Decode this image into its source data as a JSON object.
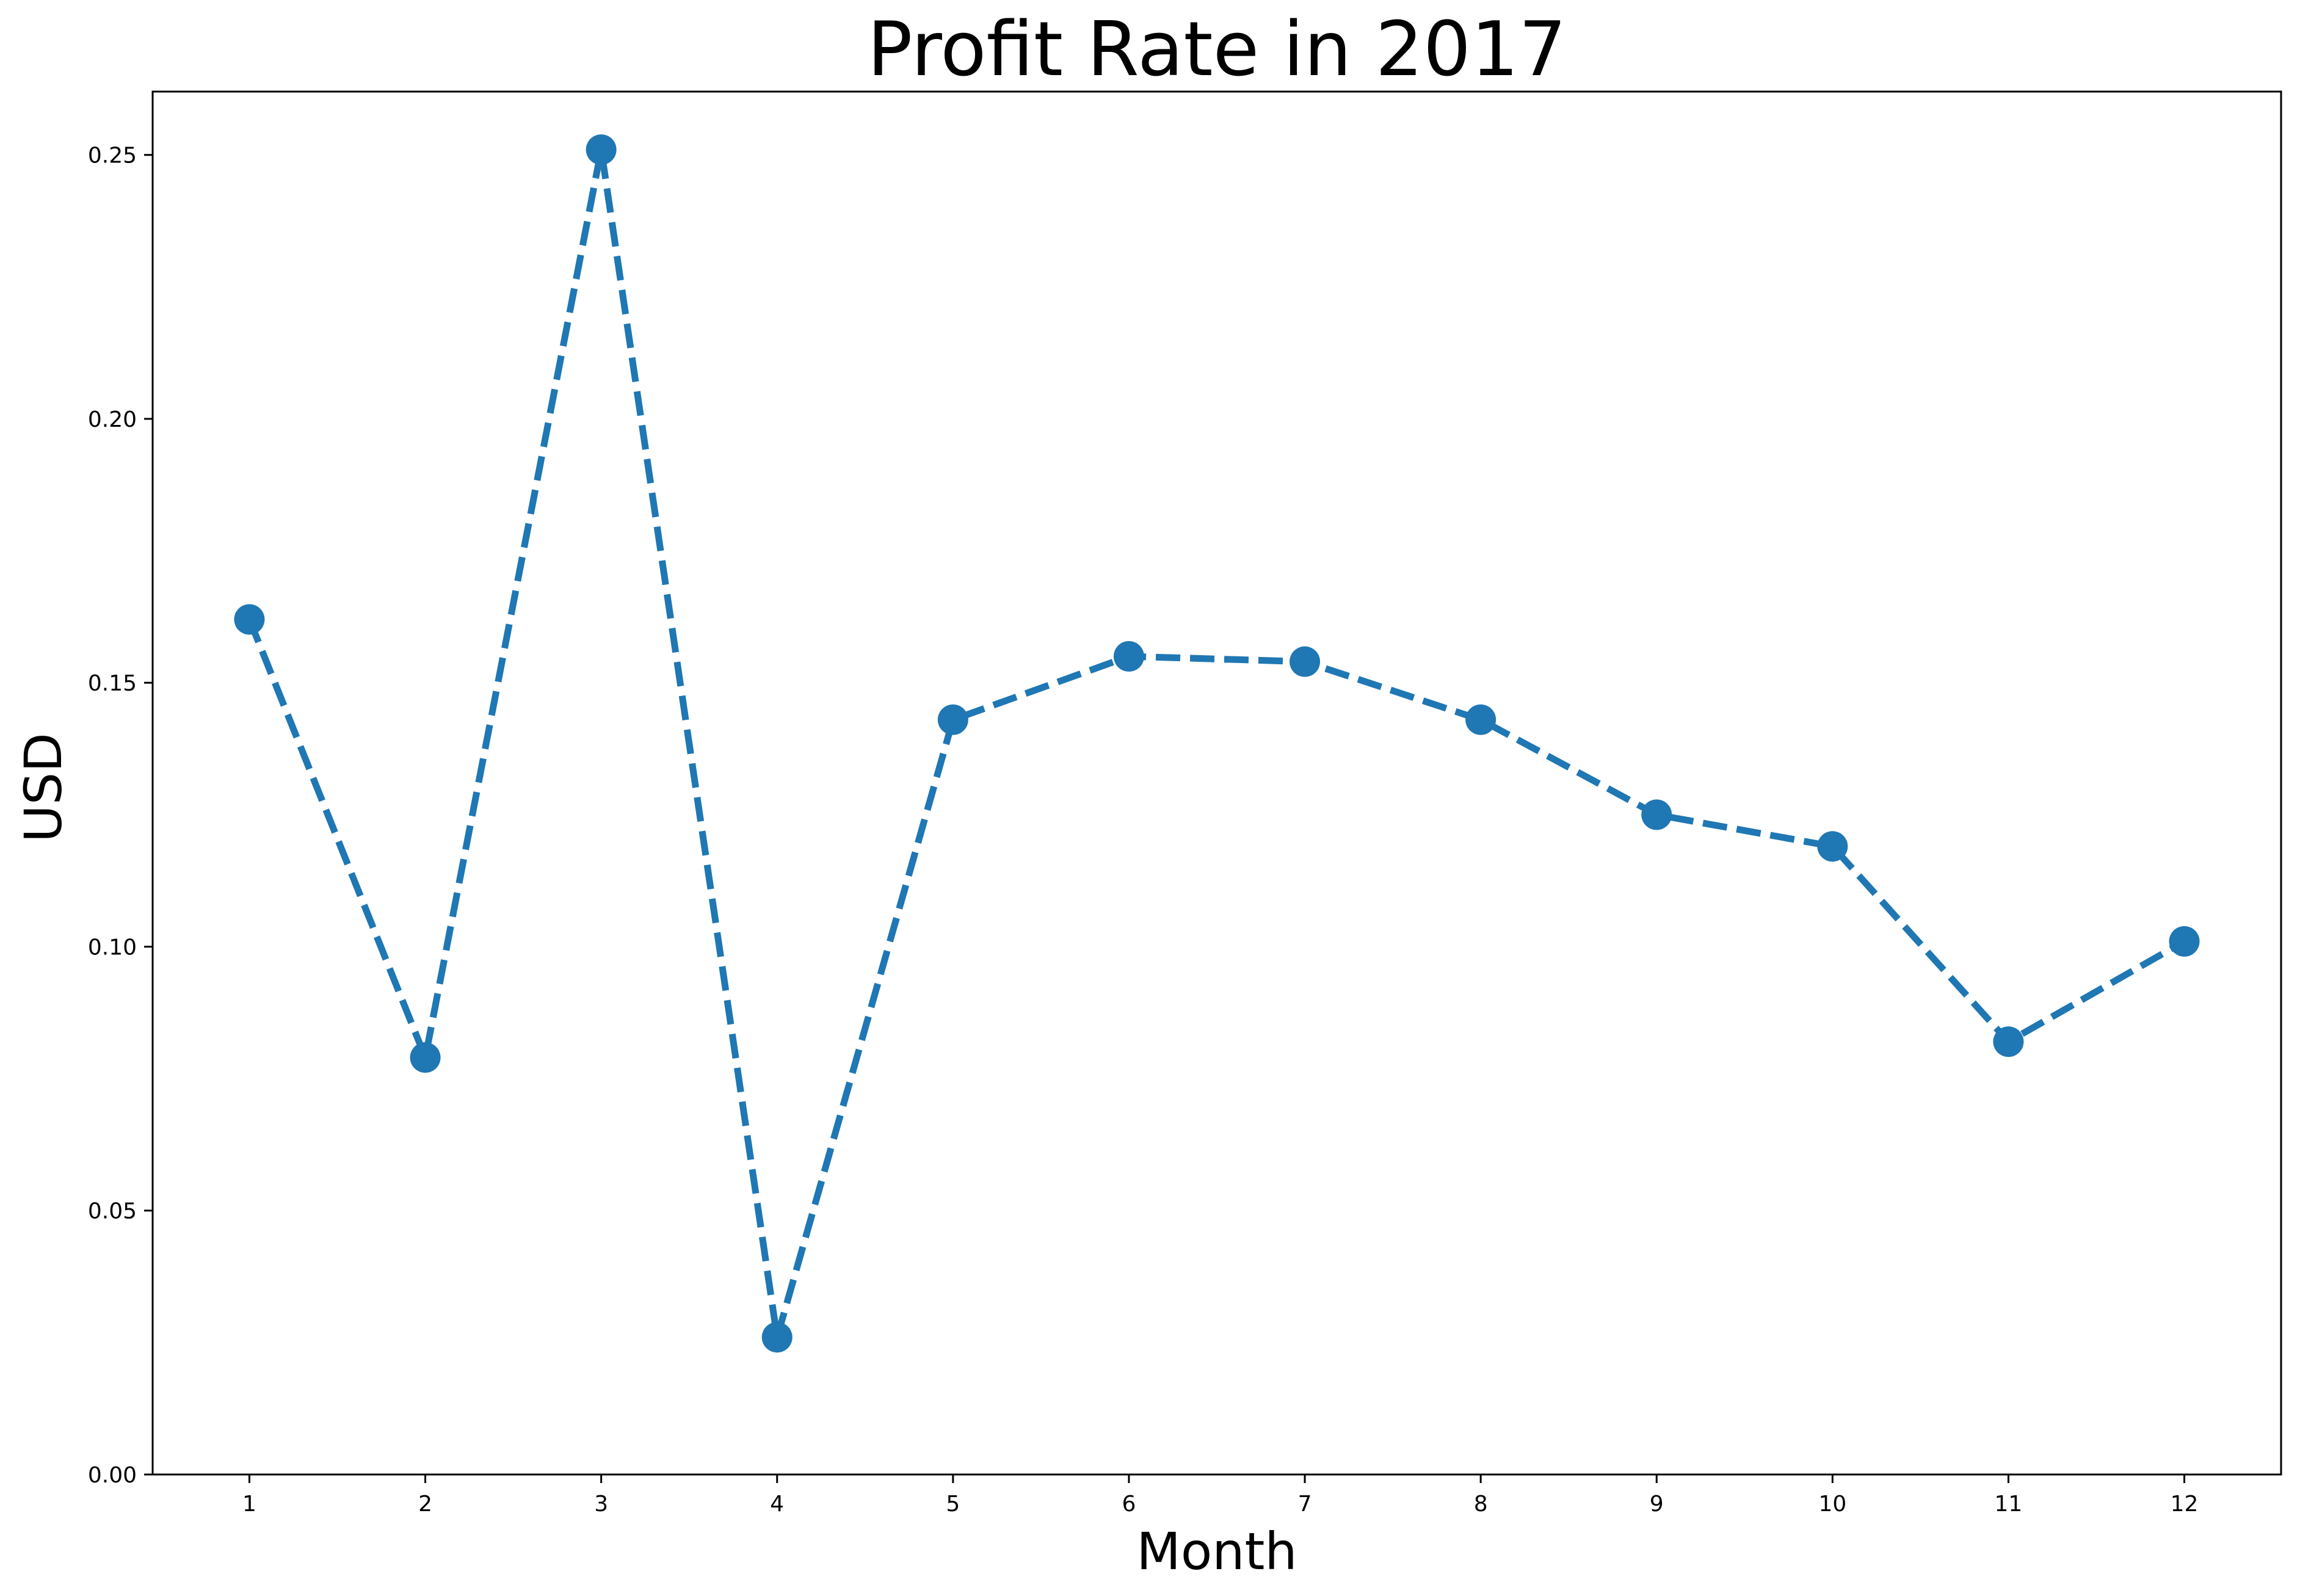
{
  "chart_data": {
    "type": "line",
    "title": "Profit Rate in 2017",
    "xlabel": "Month",
    "ylabel": "USD",
    "x": [
      1,
      2,
      3,
      4,
      5,
      6,
      7,
      8,
      9,
      10,
      11,
      12
    ],
    "x_tick_labels": [
      "1",
      "2",
      "3",
      "4",
      "5",
      "6",
      "7",
      "8",
      "9",
      "10",
      "11",
      "12"
    ],
    "y_tick_values": [
      0.0,
      0.05,
      0.1,
      0.15,
      0.2,
      0.25
    ],
    "y_tick_labels": [
      "0.00",
      "0.05",
      "0.10",
      "0.15",
      "0.20",
      "0.25"
    ],
    "xlim": [
      0.45,
      12.55
    ],
    "ylim": [
      0,
      0.262
    ],
    "grid": false,
    "series": [
      {
        "values": [
          0.162,
          0.079,
          0.251,
          0.026,
          0.143,
          0.155,
          0.154,
          0.143,
          0.125,
          0.119,
          0.082,
          0.101
        ],
        "color": "#1f77b4",
        "line_style": "dashed",
        "marker": "circle"
      }
    ]
  }
}
